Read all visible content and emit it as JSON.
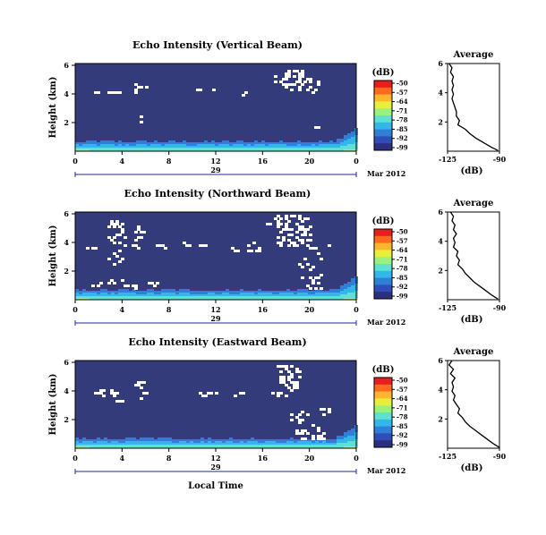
{
  "colors": {
    "background": "#333b7a",
    "scale": [
      "#2b2f7e",
      "#2f4db5",
      "#2f7fd6",
      "#33b7e8",
      "#5ee0d3",
      "#9cf07c",
      "#e8ef3a",
      "#ffb52e",
      "#ff6a1e",
      "#e81e1e"
    ]
  },
  "chart_data": [
    {
      "type": "heatmap",
      "title": "Echo Intensity (Vertical Beam)",
      "ylabel": "Height (km)",
      "y_ticks": [
        "6",
        "4",
        "2"
      ],
      "x_ticks": [
        "0",
        "4",
        "8",
        "12",
        "16",
        "20",
        "0"
      ],
      "date_day": "29",
      "date_month": "Mar 2012",
      "xlabel": "",
      "ylim": [
        0,
        6
      ],
      "colorbar": {
        "unit": "(dB)",
        "ticks": [
          "-50",
          "-57",
          "-64",
          "-71",
          "-78",
          "-85",
          "-92",
          "-99"
        ]
      },
      "profile": {
        "title": "Average",
        "xlabel": "(dB)",
        "x_ticks": [
          "-125",
          "-90"
        ],
        "y_ticks": [
          "6",
          "4",
          "2"
        ],
        "xlim": [
          -125,
          -90
        ],
        "points": [
          [
            -124,
            6.0
          ],
          [
            -122,
            5.7
          ],
          [
            -123,
            5.4
          ],
          [
            -121,
            5.1
          ],
          [
            -122,
            4.8
          ],
          [
            -121,
            4.5
          ],
          [
            -122,
            4.2
          ],
          [
            -121,
            3.9
          ],
          [
            -122,
            3.6
          ],
          [
            -121,
            3.3
          ],
          [
            -120,
            3.0
          ],
          [
            -119,
            2.7
          ],
          [
            -119,
            2.4
          ],
          [
            -117,
            2.1
          ],
          [
            -118,
            1.8
          ],
          [
            -113,
            1.5
          ],
          [
            -110,
            1.2
          ],
          [
            -106,
            0.9
          ],
          [
            -101,
            0.6
          ],
          [
            -96,
            0.3
          ],
          [
            -91,
            0.05
          ]
        ]
      }
    },
    {
      "type": "heatmap",
      "title": "Echo Intensity (Northward Beam)",
      "ylabel": "Height (km)",
      "y_ticks": [
        "6",
        "4",
        "2"
      ],
      "x_ticks": [
        "0",
        "4",
        "8",
        "12",
        "16",
        "20",
        "0"
      ],
      "date_day": "29",
      "date_month": "Mar 2012",
      "xlabel": "",
      "ylim": [
        0,
        6
      ],
      "colorbar": {
        "unit": "(dB)",
        "ticks": [
          "-50",
          "-57",
          "-64",
          "-71",
          "-78",
          "-85",
          "-92",
          "-99"
        ]
      },
      "profile": {
        "title": "Average",
        "xlabel": "(dB)",
        "x_ticks": [
          "-125",
          "-90"
        ],
        "y_ticks": [
          "6",
          "4",
          "2"
        ],
        "xlim": [
          -125,
          -90
        ],
        "points": [
          [
            -123,
            6.0
          ],
          [
            -121,
            5.7
          ],
          [
            -122,
            5.4
          ],
          [
            -120,
            5.1
          ],
          [
            -121,
            4.8
          ],
          [
            -119,
            4.5
          ],
          [
            -121,
            4.2
          ],
          [
            -120,
            3.9
          ],
          [
            -121,
            3.6
          ],
          [
            -118,
            3.3
          ],
          [
            -119,
            3.0
          ],
          [
            -117,
            2.7
          ],
          [
            -118,
            2.4
          ],
          [
            -115,
            2.1
          ],
          [
            -113,
            1.8
          ],
          [
            -110,
            1.5
          ],
          [
            -107,
            1.2
          ],
          [
            -103,
            0.9
          ],
          [
            -99,
            0.6
          ],
          [
            -95,
            0.3
          ],
          [
            -91,
            0.05
          ]
        ]
      }
    },
    {
      "type": "heatmap",
      "title": "Echo Intensity (Eastward Beam)",
      "ylabel": "Height (km)",
      "y_ticks": [
        "6",
        "4",
        "2"
      ],
      "x_ticks": [
        "0",
        "4",
        "8",
        "12",
        "16",
        "20",
        "0"
      ],
      "date_day": "29",
      "date_month": "Mar 2012",
      "xlabel": "Local Time",
      "ylim": [
        0,
        6
      ],
      "colorbar": {
        "unit": "(dB)",
        "ticks": [
          "-50",
          "-57",
          "-64",
          "-71",
          "-78",
          "-85",
          "-92",
          "-99"
        ]
      },
      "profile": {
        "title": "Average",
        "xlabel": "(dB)",
        "x_ticks": [
          "-125",
          "-90"
        ],
        "y_ticks": [
          "6",
          "4",
          "2"
        ],
        "xlim": [
          -125,
          -90
        ],
        "points": [
          [
            -122,
            6.0
          ],
          [
            -124,
            5.7
          ],
          [
            -121,
            5.4
          ],
          [
            -123,
            5.1
          ],
          [
            -120,
            4.8
          ],
          [
            -122,
            4.5
          ],
          [
            -121,
            4.2
          ],
          [
            -122,
            3.9
          ],
          [
            -120,
            3.6
          ],
          [
            -121,
            3.3
          ],
          [
            -119,
            3.0
          ],
          [
            -117,
            2.7
          ],
          [
            -118,
            2.4
          ],
          [
            -115,
            2.1
          ],
          [
            -113,
            1.8
          ],
          [
            -110,
            1.5
          ],
          [
            -106,
            1.2
          ],
          [
            -102,
            0.9
          ],
          [
            -98,
            0.6
          ],
          [
            -94,
            0.3
          ],
          [
            -90,
            0.05
          ]
        ]
      }
    }
  ]
}
